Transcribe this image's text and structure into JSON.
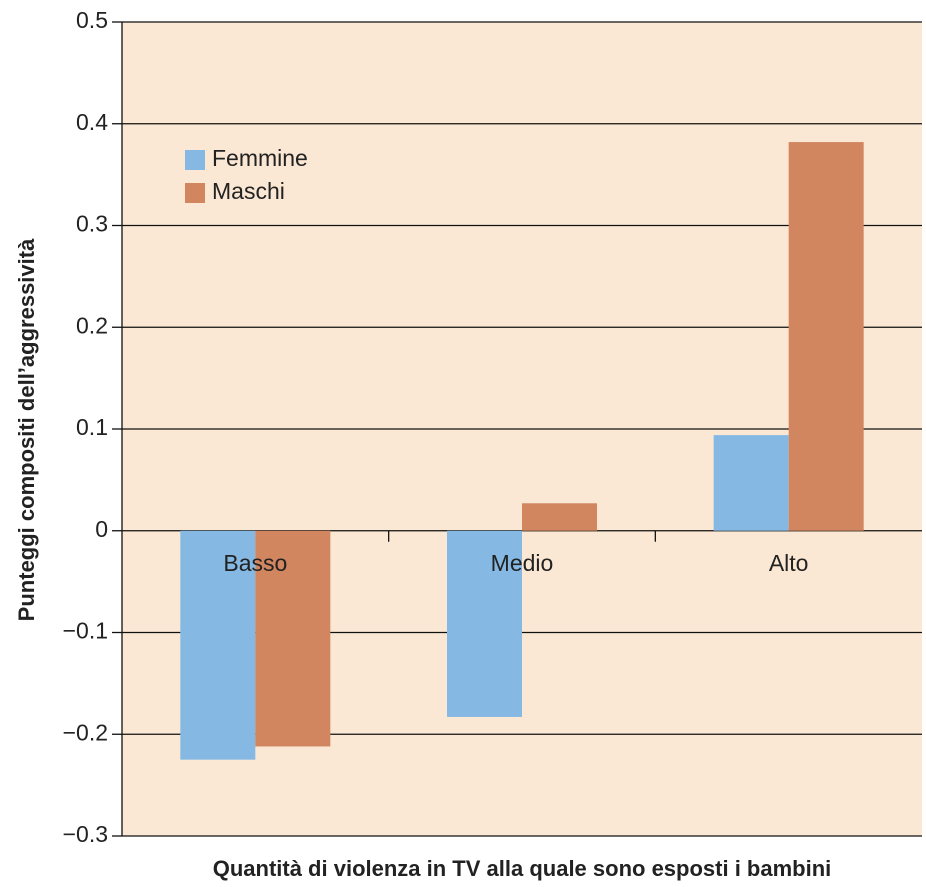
{
  "chart_data": {
    "type": "bar",
    "x_label": "Quantità di violenza in TV alla quale sono esposti i bambini",
    "y_label": "Punteggi compositi dell’aggressività",
    "categories": [
      "Basso",
      "Medio",
      "Alto"
    ],
    "series": [
      {
        "name": "Femmine",
        "color": "#85b9e3",
        "values": [
          -0.225,
          -0.183,
          0.094
        ]
      },
      {
        "name": "Maschi",
        "color": "#d18660",
        "values": [
          -0.212,
          0.027,
          0.382
        ]
      }
    ],
    "ylim": [
      -0.3,
      0.5
    ],
    "yticks": [
      {
        "value": -0.3,
        "label": "−0.3"
      },
      {
        "value": -0.2,
        "label": "−0.2"
      },
      {
        "value": -0.1,
        "label": "−0.1"
      },
      0,
      0.1,
      0.2,
      0.3,
      0.4,
      0.5
    ],
    "grid": true,
    "legend": "upper left",
    "background": "#fbe8d4"
  }
}
